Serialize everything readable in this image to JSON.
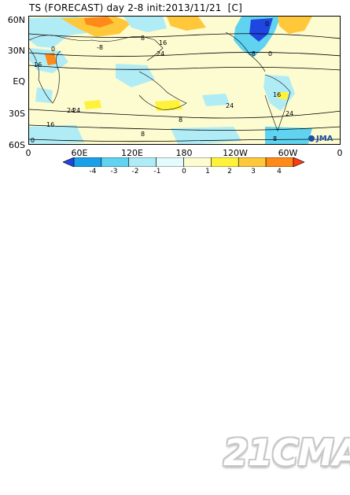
{
  "title": "TS (FORECAST) day 2-8 init:2013/11/21  [C]",
  "lat_labels": [
    "60N",
    "30N",
    "EQ",
    "30S",
    "60S"
  ],
  "lon_labels": [
    "0",
    "60E",
    "120E",
    "180",
    "120W",
    "60W",
    "0"
  ],
  "colorbar": {
    "labels": [
      "-4",
      "-3",
      "-2",
      "-1",
      "0",
      "1",
      "2",
      "3",
      "4"
    ],
    "colors": [
      "#1f46e0",
      "#1aa0e8",
      "#5fd3f0",
      "#b0ecf5",
      "#e3fbfd",
      "#fdfbd0",
      "#fff23a",
      "#ffc83a",
      "#ff8a1a",
      "#ff3a10"
    ]
  },
  "contour_labels": [
    "-8",
    "16",
    "24",
    "0",
    "8",
    "-8",
    "16",
    "24",
    "0",
    "8",
    "24",
    "16",
    "24",
    "8",
    "0",
    "16",
    "24",
    "0",
    "8"
  ],
  "logo": "JMA",
  "watermark": "21CMA"
}
